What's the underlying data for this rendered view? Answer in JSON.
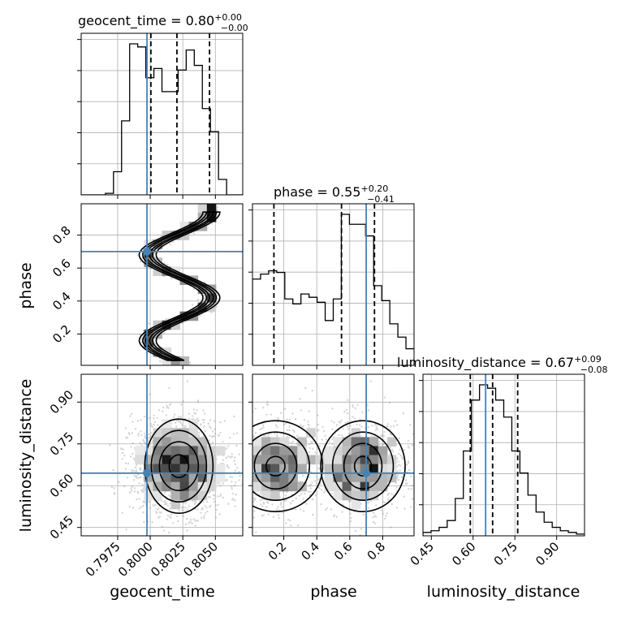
{
  "chart_data": {
    "type": "corner",
    "parameters": [
      {
        "name": "geocent_time",
        "title_main": "geocent_time = 0.80",
        "title_plus": "+0.00",
        "title_minus": "−0.00",
        "range": [
          0.7947,
          0.8071
        ],
        "ticks": [
          0.7975,
          0.8,
          0.8025,
          0.805
        ],
        "tick_labels": [
          "0.7975",
          "0.8000",
          "0.8025",
          "0.8050"
        ],
        "truth": 0.79975,
        "quantiles": [
          0.80005,
          0.80205,
          0.80455
        ],
        "hist_edges_start": 0.7947,
        "hist_bin_width": 0.00062,
        "hist_counts": [
          0,
          0,
          0,
          1,
          15,
          48,
          98,
          96,
          76,
          82,
          67,
          67,
          81,
          94,
          84,
          56,
          41,
          10,
          0,
          0
        ]
      },
      {
        "name": "phase",
        "title_main": "phase = 0.55",
        "title_plus": "+0.20",
        "title_minus": "−0.41",
        "range": [
          0.01,
          0.99
        ],
        "ticks": [
          0.2,
          0.4,
          0.6,
          0.8
        ],
        "tick_labels": [
          "0.2",
          "0.4",
          "0.6",
          "0.8"
        ],
        "truth": 0.7,
        "quantiles": [
          0.14,
          0.55,
          0.75
        ],
        "hist_edges_start": 0.01,
        "hist_bin_width": 0.049,
        "hist_counts": [
          52,
          55,
          57,
          56,
          40,
          37,
          43,
          41,
          38,
          27,
          40,
          91,
          85,
          85,
          78,
          48,
          39,
          25,
          17,
          10
        ]
      },
      {
        "name": "luminosity_distance",
        "title_main": "luminosity_distance = 0.67",
        "title_plus": "+0.09",
        "title_minus": "−0.08",
        "range": [
          0.42,
          1.0
        ],
        "ticks": [
          0.45,
          0.6,
          0.75,
          0.9
        ],
        "tick_labels": [
          "0.45",
          "0.60",
          "0.75",
          "0.90"
        ],
        "truth": 0.645,
        "quantiles": [
          0.59,
          0.67,
          0.76
        ],
        "hist_edges_start": 0.42,
        "hist_bin_width": 0.029,
        "hist_counts": [
          2,
          3,
          5,
          9,
          22,
          50,
          80,
          89,
          87,
          80,
          70,
          50,
          37,
          24,
          14,
          8,
          5,
          3,
          2,
          1
        ]
      }
    ],
    "truth_color": "#4682b4",
    "contour_color": "#000000",
    "grid": true
  }
}
